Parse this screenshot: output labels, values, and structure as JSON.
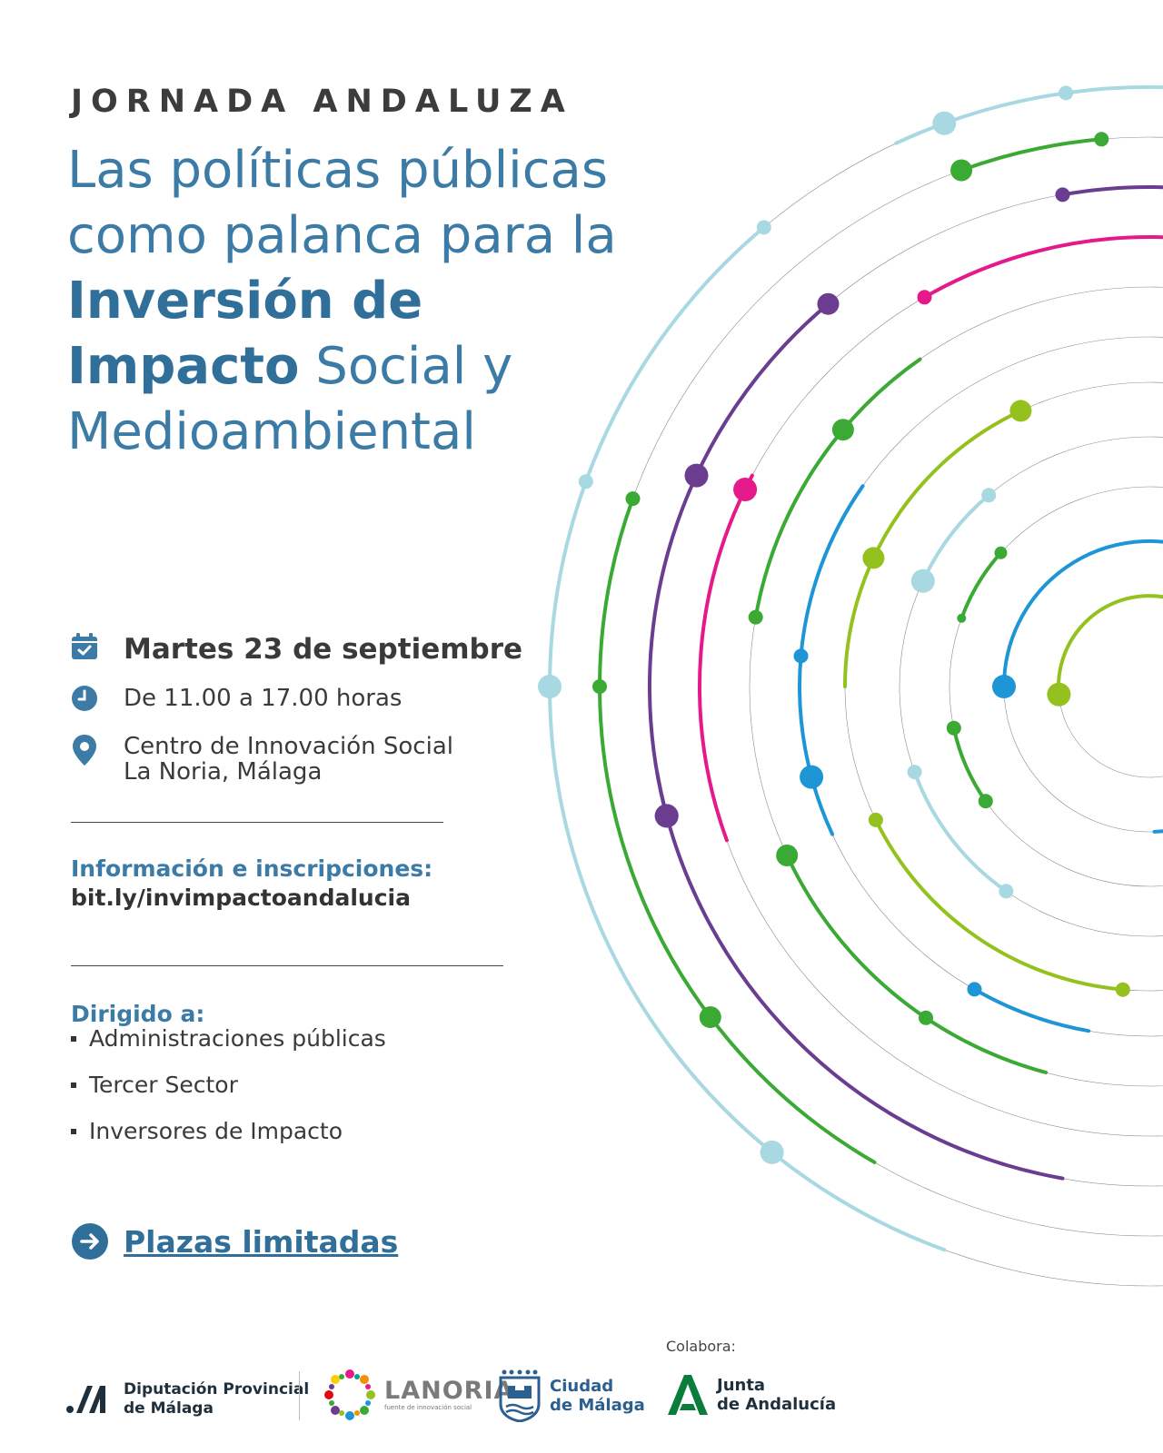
{
  "header": {
    "kicker": "JORNADA ANDALUZA",
    "title_lines": {
      "line1": "Las políticas públicas",
      "line2": "como palanca para la",
      "line3_bold": "Inversión de",
      "line4_bold": "Impacto",
      "line4_rest": " Social y",
      "line5": "Medioambiental"
    }
  },
  "event": {
    "date": "Martes 23 de septiembre",
    "time": "De 11.00 a 17.00 horas",
    "place_line1": "Centro de Innovación Social",
    "place_line2": "La Noria, Málaga",
    "icons": [
      "calendar-icon",
      "clock-icon",
      "location-pin-icon"
    ]
  },
  "registration": {
    "label": "Información e inscripciones:",
    "link": "bit.ly/invimpactoandalucia"
  },
  "audience": {
    "label": "Dirigido a:",
    "items": [
      "Administraciones públicas",
      "Tercer Sector",
      "Inversores de Impacto"
    ]
  },
  "cta": {
    "label": "Plazas limitadas",
    "icon": "arrow-right-circle-icon"
  },
  "footer": {
    "collab_label": "Colabora:",
    "logos": {
      "diputacion": {
        "line1": "Diputación Provincial",
        "line2": "de Málaga"
      },
      "noria": {
        "word": "LANORIA",
        "sub": "fuente de innovación social"
      },
      "ciudad": {
        "line1": "Ciudad",
        "line2": "de Málaga"
      },
      "junta": {
        "line1": "Junta",
        "line2": "de Andalucía"
      }
    }
  },
  "colors": {
    "title_blue": "#3b7ba5",
    "light_blue": "#a8d8e2",
    "green": "#3aaa35",
    "purple": "#6a3d91",
    "magenta": "#e5198a",
    "blue": "#1e96d6",
    "lime": "#95c11f"
  }
}
